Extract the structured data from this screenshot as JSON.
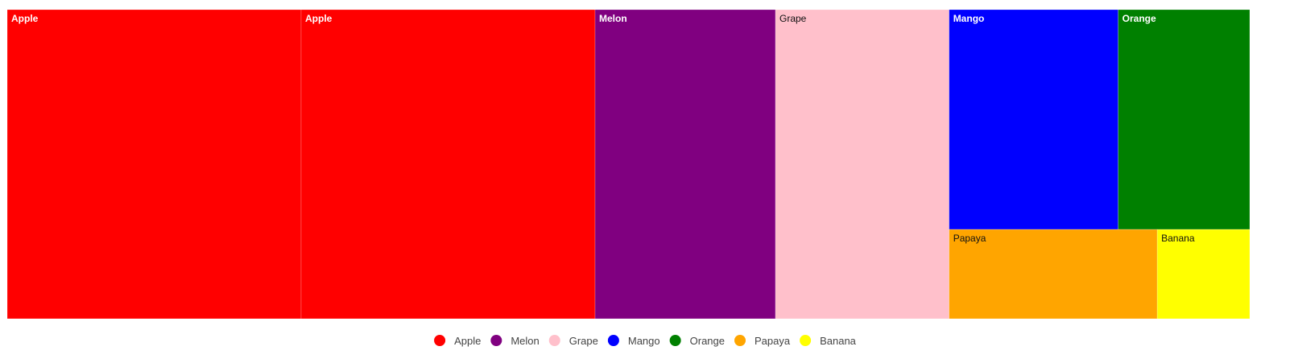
{
  "chart_data": {
    "type": "treemap",
    "title": "",
    "legend_position": "bottom-center",
    "tiles": [
      {
        "name": "Apple",
        "value": 22,
        "color": "#ff0000",
        "label_color": "#ffffff",
        "bold": true
      },
      {
        "name": "Apple",
        "value": 22,
        "color": "#ff0000",
        "label_color": "#ffffff",
        "bold": true
      },
      {
        "name": "Melon",
        "value": 13.5,
        "color": "#800080",
        "label_color": "#ffffff",
        "bold": true
      },
      {
        "name": "Grape",
        "value": 13,
        "color": "#ffc0cb",
        "label_color": "#111111",
        "bold": false
      },
      {
        "name": "Mango",
        "value": 9,
        "color": "#0000ff",
        "label_color": "#ffffff",
        "bold": true
      },
      {
        "name": "Orange",
        "value": 7,
        "color": "#008000",
        "label_color": "#ffffff",
        "bold": true
      },
      {
        "name": "Papaya",
        "value": 4.5,
        "color": "#ffa500",
        "label_color": "#111111",
        "bold": false
      },
      {
        "name": "Banana",
        "value": 2,
        "color": "#ffff00",
        "label_color": "#111111",
        "bold": false
      }
    ],
    "legend": [
      {
        "name": "Apple",
        "color": "#ff0000"
      },
      {
        "name": "Melon",
        "color": "#800080"
      },
      {
        "name": "Grape",
        "color": "#ffc0cb"
      },
      {
        "name": "Mango",
        "color": "#0000ff"
      },
      {
        "name": "Orange",
        "color": "#008000"
      },
      {
        "name": "Papaya",
        "color": "#ffa500"
      },
      {
        "name": "Banana",
        "color": "#ffff00"
      }
    ]
  }
}
